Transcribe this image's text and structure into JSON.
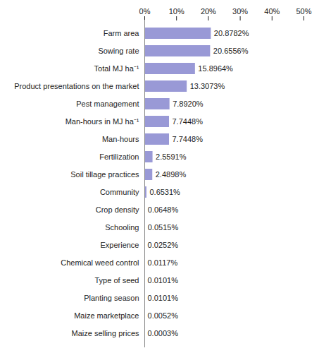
{
  "chart_data": {
    "type": "bar",
    "orientation": "horizontal",
    "categories": [
      "Farm area",
      "Sowing rate",
      "Total MJ ha⁻¹",
      "Product presentations on the market",
      "Pest management",
      "Man-hours in MJ ha⁻¹",
      "Man-hours",
      "Fertilization",
      "Soil tillage practices",
      "Community",
      "Crop density",
      "Schooling",
      "Experience",
      "Chemical weed control",
      "Type of seed",
      "Planting season",
      "Maize marketplace",
      "Maize selling prices"
    ],
    "values": [
      20.8782,
      20.6556,
      15.8964,
      13.3073,
      7.892,
      7.7448,
      7.7448,
      2.5591,
      2.4898,
      0.6531,
      0.0648,
      0.0515,
      0.0252,
      0.0117,
      0.0101,
      0.0101,
      0.0052,
      0.0003
    ],
    "value_labels": [
      "20.8782%",
      "20.6556%",
      "15.8964%",
      "13.3073%",
      "7.8920%",
      "7.7448%",
      "7.7448%",
      "2.5591%",
      "2.4898%",
      "0.6531%",
      "0.0648%",
      "0.0515%",
      "0.0252%",
      "0.0117%",
      "0.0101%",
      "0.0101%",
      "0.0052%",
      "0.0003%"
    ],
    "color": "#9999d6",
    "xlim": [
      0,
      50
    ],
    "xticks": [
      {
        "value": 0,
        "label": "0%"
      },
      {
        "value": 10,
        "label": "10%"
      },
      {
        "value": 20,
        "label": "20%"
      },
      {
        "value": 30,
        "label": "30%"
      },
      {
        "value": 40,
        "label": "40%"
      },
      {
        "value": 50,
        "label": "50%"
      }
    ],
    "grid": false,
    "data_labels": true
  }
}
